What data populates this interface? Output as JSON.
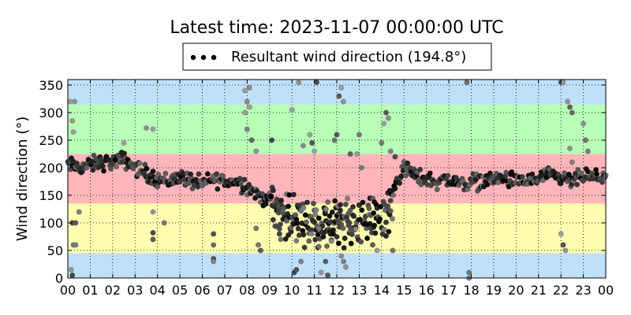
{
  "chart_data": {
    "type": "scatter",
    "title": "Latest time: 2023-11-07 00:00:00 UTC",
    "xlabel": "",
    "ylabel": "Wind direction (°)",
    "xlim": [
      0,
      24
    ],
    "ylim": [
      0,
      360
    ],
    "x_tick_values": [
      0,
      1,
      2,
      3,
      4,
      5,
      6,
      7,
      8,
      9,
      10,
      11,
      12,
      13,
      14,
      15,
      16,
      17,
      18,
      19,
      20,
      21,
      22,
      23,
      24
    ],
    "x_tick_labels": [
      "00",
      "01",
      "02",
      "03",
      "04",
      "05",
      "06",
      "07",
      "08",
      "09",
      "10",
      "11",
      "12",
      "13",
      "14",
      "15",
      "16",
      "17",
      "18",
      "19",
      "20",
      "21",
      "22",
      "23",
      "00"
    ],
    "y_ticks": [
      0,
      50,
      100,
      150,
      200,
      250,
      300,
      350
    ],
    "grid": true,
    "legend_position": "top-center",
    "legend": [
      {
        "label": "Resultant wind direction (194.8°)",
        "marker": "dots",
        "color": "#000000"
      }
    ],
    "bands": [
      {
        "from": 0,
        "to": 45,
        "color": "#bfe0fb"
      },
      {
        "from": 45,
        "to": 135,
        "color": "#fffdb0"
      },
      {
        "from": 135,
        "to": 225,
        "color": "#ffb6bb"
      },
      {
        "from": 225,
        "to": 315,
        "color": "#b8ffb8"
      },
      {
        "from": 315,
        "to": 360,
        "color": "#bfe0fb"
      }
    ],
    "series": [
      {
        "trend_x": [
          0,
          0.5,
          1,
          1.5,
          2,
          2.5,
          3,
          3.5,
          4,
          4.5,
          5,
          5.5,
          6,
          6.5,
          7,
          7.5,
          7.9,
          8.2,
          8.5,
          9,
          9.5,
          10,
          10.5,
          11,
          11.5,
          12,
          12.5,
          13,
          13.5,
          14,
          14.3,
          14.6,
          15,
          15.5,
          16,
          16.5,
          17,
          17.5,
          18,
          18.5,
          19,
          19.5,
          20,
          20.5,
          21,
          21.5,
          22,
          22.5,
          23,
          23.5,
          24
        ],
        "trend_y": [
          205,
          200,
          205,
          210,
          210,
          215,
          200,
          190,
          180,
          175,
          185,
          175,
          170,
          180,
          175,
          175,
          170,
          160,
          150,
          140,
          120,
          110,
          105,
          100,
          95,
          95,
          100,
          105,
          100,
          100,
          115,
          170,
          200,
          185,
          180,
          175,
          180,
          170,
          175,
          175,
          180,
          180,
          175,
          175,
          180,
          185,
          180,
          175,
          185,
          180,
          190
        ],
        "outliers": [
          {
            "x": 0.1,
            "y": 320
          },
          {
            "x": 0.3,
            "y": 320
          },
          {
            "x": 0.2,
            "y": 285
          },
          {
            "x": 0.25,
            "y": 265
          },
          {
            "x": 0.2,
            "y": 100
          },
          {
            "x": 0.35,
            "y": 100
          },
          {
            "x": 0.25,
            "y": 60
          },
          {
            "x": 0.35,
            "y": 60
          },
          {
            "x": 0.15,
            "y": 15
          },
          {
            "x": 0.2,
            "y": 5
          },
          {
            "x": 0.5,
            "y": 120
          },
          {
            "x": 2.5,
            "y": 245
          },
          {
            "x": 3.5,
            "y": 272
          },
          {
            "x": 3.8,
            "y": 270
          },
          {
            "x": 3.8,
            "y": 120
          },
          {
            "x": 3.8,
            "y": 82
          },
          {
            "x": 3.8,
            "y": 70
          },
          {
            "x": 4.3,
            "y": 100
          },
          {
            "x": 6.5,
            "y": 35
          },
          {
            "x": 6.5,
            "y": 30
          },
          {
            "x": 6.5,
            "y": 80
          },
          {
            "x": 6.5,
            "y": 60
          },
          {
            "x": 7.9,
            "y": 340
          },
          {
            "x": 8.1,
            "y": 345
          },
          {
            "x": 8.0,
            "y": 320
          },
          {
            "x": 8.1,
            "y": 310
          },
          {
            "x": 7.9,
            "y": 300
          },
          {
            "x": 8.0,
            "y": 270
          },
          {
            "x": 8.2,
            "y": 250
          },
          {
            "x": 8.4,
            "y": 230
          },
          {
            "x": 8.4,
            "y": 90
          },
          {
            "x": 8.5,
            "y": 60
          },
          {
            "x": 8.6,
            "y": 50
          },
          {
            "x": 9.1,
            "y": 250
          },
          {
            "x": 9.5,
            "y": 70
          },
          {
            "x": 10.0,
            "y": 305
          },
          {
            "x": 10.1,
            "y": 10
          },
          {
            "x": 10.2,
            "y": 15
          },
          {
            "x": 10.3,
            "y": 355
          },
          {
            "x": 10.4,
            "y": 30
          },
          {
            "x": 10.5,
            "y": 240
          },
          {
            "x": 10.8,
            "y": 260
          },
          {
            "x": 10.9,
            "y": 245
          },
          {
            "x": 11.0,
            "y": 230
          },
          {
            "x": 11.1,
            "y": 355
          },
          {
            "x": 11.2,
            "y": 90
          },
          {
            "x": 11.3,
            "y": 10
          },
          {
            "x": 11.5,
            "y": 30
          },
          {
            "x": 11.6,
            "y": 5
          },
          {
            "x": 11.9,
            "y": 250
          },
          {
            "x": 12.0,
            "y": 260
          },
          {
            "x": 12.1,
            "y": 330
          },
          {
            "x": 12.2,
            "y": 345
          },
          {
            "x": 12.3,
            "y": 320
          },
          {
            "x": 12.2,
            "y": 40
          },
          {
            "x": 12.3,
            "y": 30
          },
          {
            "x": 12.4,
            "y": 20
          },
          {
            "x": 12.6,
            "y": 225
          },
          {
            "x": 12.9,
            "y": 225
          },
          {
            "x": 13.0,
            "y": 260
          },
          {
            "x": 13.1,
            "y": 200
          },
          {
            "x": 13.6,
            "y": 60
          },
          {
            "x": 13.8,
            "y": 50
          },
          {
            "x": 14.0,
            "y": 245
          },
          {
            "x": 14.1,
            "y": 280
          },
          {
            "x": 14.2,
            "y": 300
          },
          {
            "x": 14.3,
            "y": 290
          },
          {
            "x": 14.4,
            "y": 230
          },
          {
            "x": 14.5,
            "y": 50
          },
          {
            "x": 14.6,
            "y": 220
          },
          {
            "x": 17.8,
            "y": 355
          },
          {
            "x": 17.9,
            "y": 10
          },
          {
            "x": 17.9,
            "y": 0
          },
          {
            "x": 22.0,
            "y": 355
          },
          {
            "x": 22.1,
            "y": 355
          },
          {
            "x": 22.0,
            "y": 80
          },
          {
            "x": 22.1,
            "y": 60
          },
          {
            "x": 22.2,
            "y": 50
          },
          {
            "x": 22.3,
            "y": 320
          },
          {
            "x": 22.4,
            "y": 310
          },
          {
            "x": 22.5,
            "y": 300
          },
          {
            "x": 22.4,
            "y": 235
          },
          {
            "x": 22.5,
            "y": 210
          },
          {
            "x": 23.0,
            "y": 280
          },
          {
            "x": 23.1,
            "y": 250
          },
          {
            "x": 23.2,
            "y": 230
          }
        ]
      }
    ]
  }
}
